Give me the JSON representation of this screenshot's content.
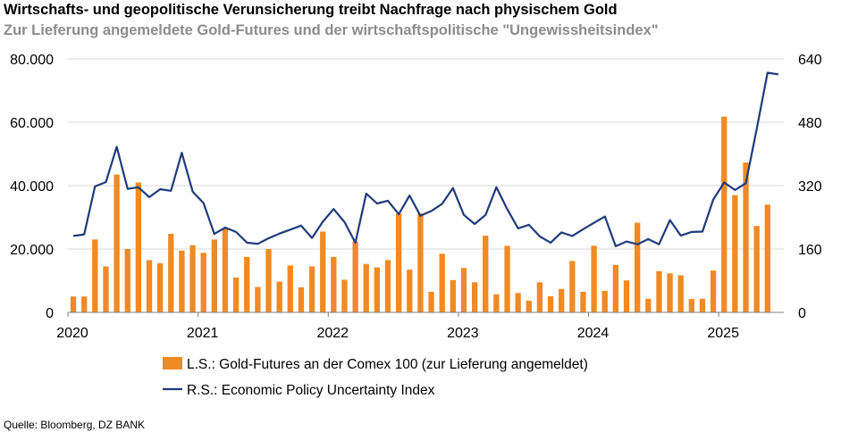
{
  "header": {
    "title": "Wirtschafts- und geopolitische Verunsicherung treibt Nachfrage nach physischem Gold",
    "subtitle": "Zur Lieferung angemeldete Gold-Futures und der wirtschaftspolitische \"Ungewissheitsindex\""
  },
  "footer": {
    "source": "Quelle: Bloomberg, DZ BANK"
  },
  "colors": {
    "bars": "#f08a24",
    "line": "#1f3b7a",
    "grid": "#d9d9d9",
    "axis": "#7f7f7f"
  },
  "chart_data": {
    "type": "bar+line",
    "title": "Wirtschafts- und geopolitische Verunsicherung treibt Nachfrage nach physischem Gold",
    "x_labels": [
      "2020",
      "2021",
      "2022",
      "2023",
      "2024",
      "2025"
    ],
    "start": "2020-01",
    "left_axis": {
      "ylim": [
        0,
        80000
      ],
      "ticks": [
        0,
        20000,
        40000,
        60000,
        80000
      ],
      "tick_labels": [
        "0",
        "20.000",
        "40.000",
        "60.000",
        "80.000"
      ]
    },
    "right_axis": {
      "ylim": [
        0,
        640
      ],
      "ticks": [
        0,
        160,
        320,
        480,
        640
      ],
      "tick_labels": [
        "0",
        "160",
        "320",
        "480",
        "640"
      ]
    },
    "series": [
      {
        "name": "L.S.: Gold-Futures an der Comex 100 (zur Lieferung angemeldet)",
        "type": "bar",
        "axis": "left",
        "values": [
          5000,
          5000,
          23000,
          14500,
          43500,
          20000,
          41000,
          16500,
          15500,
          24800,
          19500,
          21200,
          18800,
          23000,
          26500,
          11000,
          17500,
          8000,
          20000,
          9700,
          14800,
          7900,
          14500,
          25500,
          17500,
          10300,
          22400,
          15300,
          14200,
          16500,
          31200,
          13500,
          31200,
          6500,
          18500,
          10200,
          14000,
          9500,
          24200,
          5700,
          21000,
          6100,
          3700,
          9500,
          5100,
          7400,
          16200,
          6500,
          21000,
          6800,
          15000,
          10100,
          28300,
          4300,
          13000,
          12300,
          11700,
          4200,
          4300,
          13200,
          61800,
          37000,
          47300,
          27300,
          34000
        ]
      },
      {
        "name": "R.S.: Economic Policy Uncertainty Index",
        "type": "line",
        "axis": "right",
        "values": [
          193,
          197,
          318,
          329,
          418,
          312,
          316,
          291,
          311,
          307,
          403,
          305,
          276,
          198,
          214,
          203,
          176,
          173,
          187,
          199,
          209,
          219,
          188,
          229,
          261,
          228,
          176,
          300,
          275,
          282,
          248,
          295,
          244,
          256,
          274,
          314,
          246,
          223,
          246,
          316,
          261,
          212,
          221,
          192,
          176,
          202,
          193,
          210,
          226,
          242,
          167,
          179,
          172,
          185,
          172,
          233,
          194,
          203,
          204,
          285,
          328,
          309,
          326,
          463,
          605,
          601
        ]
      }
    ]
  }
}
